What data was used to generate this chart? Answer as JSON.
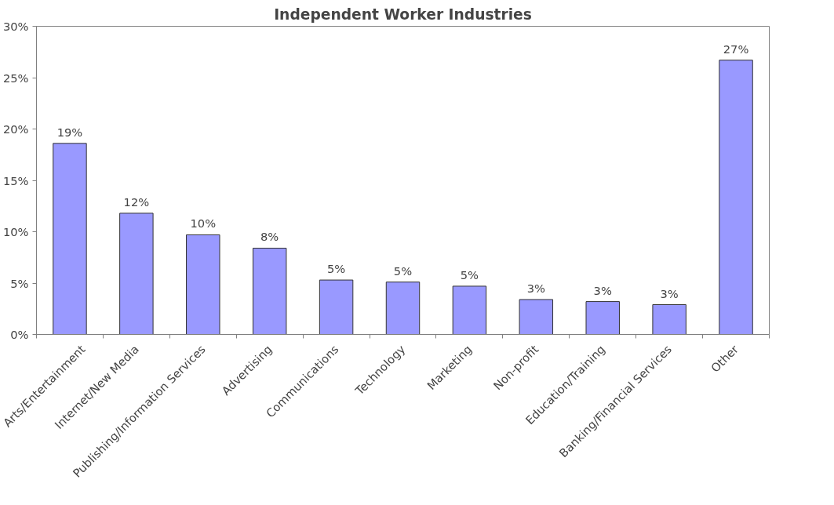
{
  "chart_data": {
    "type": "bar",
    "title": "Independent Worker Industries",
    "categories": [
      "Arts/Entertainment",
      "Internet/New Media",
      "Publishing/Information Services",
      "Advertising",
      "Communications",
      "Technology",
      "Marketing",
      "Non-profit",
      "Education/Training",
      "Banking/Financial Services",
      "Other"
    ],
    "values": [
      18.6,
      11.8,
      9.7,
      8.4,
      5.3,
      5.1,
      4.7,
      3.4,
      3.2,
      2.9,
      26.7
    ],
    "value_labels": [
      "19%",
      "12%",
      "10%",
      "8%",
      "5%",
      "5%",
      "5%",
      "3%",
      "3%",
      "3%",
      "27%"
    ],
    "color": "#9999ff",
    "ylim": [
      0,
      30
    ],
    "yticks": [
      {
        "value": 0,
        "label": "0%"
      },
      {
        "value": 5,
        "label": "5%"
      },
      {
        "value": 10,
        "label": "10%"
      },
      {
        "value": 15,
        "label": "15%"
      },
      {
        "value": 20,
        "label": "20%"
      },
      {
        "value": 25,
        "label": "25%"
      },
      {
        "value": 30,
        "label": "30%"
      }
    ],
    "grid": false
  }
}
